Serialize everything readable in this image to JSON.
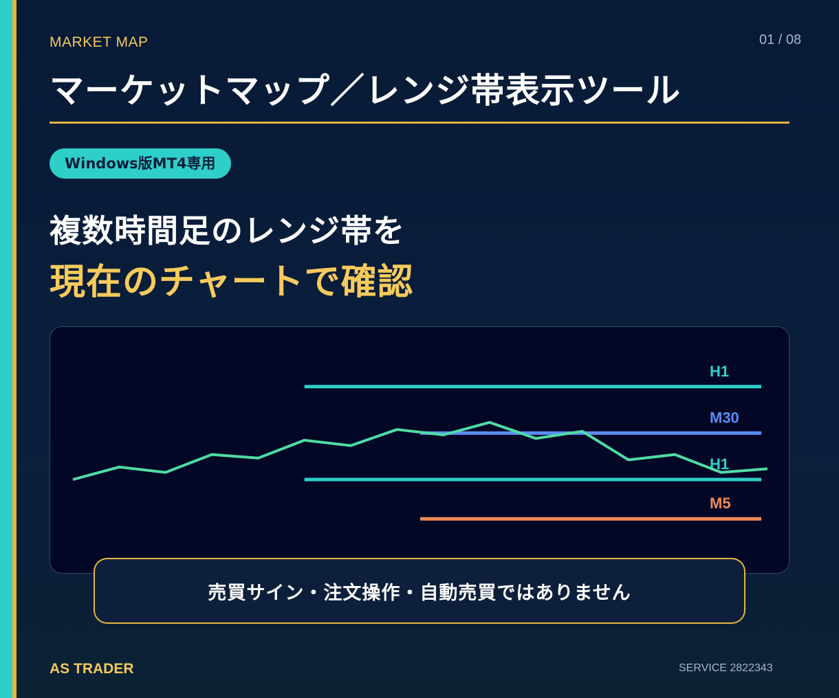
{
  "header": {
    "eyebrow": "MARKET MAP",
    "page_indicator": "01 / 08",
    "title": "マーケットマップ／レンジ帯表示ツール"
  },
  "badge": "Windows版MT4専用",
  "headline": {
    "line1": "複数時間足のレンジ帯を",
    "line2": "現在のチャートで確認"
  },
  "chart": {
    "price_line": [
      30,
      37,
      34,
      44,
      42,
      52,
      49,
      58,
      55,
      62,
      53,
      57,
      41,
      44,
      34,
      36
    ],
    "levels": [
      {
        "label": "H1",
        "value": 82,
        "start_index": 5,
        "color": "#2fcfc9"
      },
      {
        "label": "M30",
        "value": 56,
        "start_index": 7.5,
        "color": "#5b8cf5"
      },
      {
        "label": "H1",
        "value": 30,
        "start_index": 5,
        "color": "#2fcfc9"
      },
      {
        "label": "M5",
        "value": 8,
        "start_index": 7.5,
        "color": "#f08a55"
      }
    ],
    "price_color": "#4fdba5"
  },
  "notice": "売買サイン・注文操作・自動売買ではありません",
  "footer": {
    "brand": "AS TRADER",
    "service": "SERVICE 2822343"
  }
}
